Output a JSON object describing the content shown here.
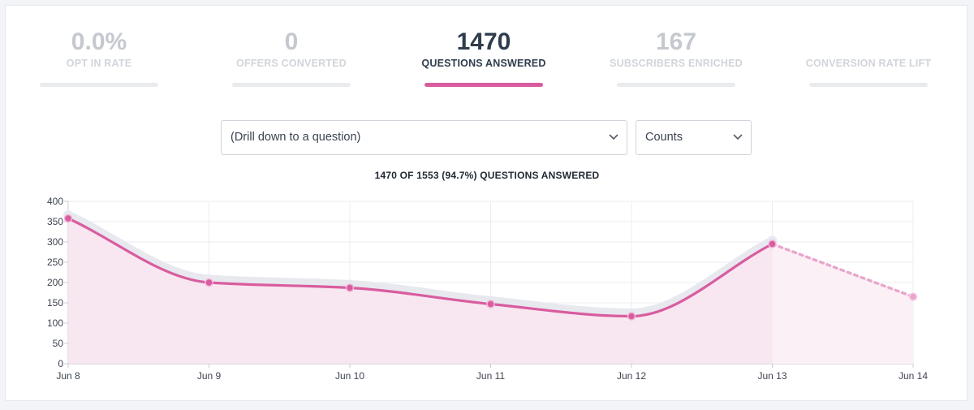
{
  "metrics": [
    {
      "value": "0.0%",
      "label": "OPT IN RATE",
      "active": false
    },
    {
      "value": "0",
      "label": "OFFERS CONVERTED",
      "active": false
    },
    {
      "value": "1470",
      "label": "QUESTIONS ANSWERED",
      "active": true
    },
    {
      "value": "167",
      "label": "SUBSCRIBERS ENRICHED",
      "active": false
    },
    {
      "value": "",
      "label": "CONVERSION RATE LIFT",
      "active": false
    }
  ],
  "filters": {
    "question_select": "(Drill down to a question)",
    "mode_select": "Counts"
  },
  "colors": {
    "accent": "#d95c9f",
    "fill": "#f7e4ef",
    "shadow": "#e7e9ef"
  },
  "chart_data": {
    "type": "area",
    "title": "1470 OF 1553 (94.7%) QUESTIONS ANSWERED",
    "categories": [
      "Jun 8",
      "Jun 9",
      "Jun 10",
      "Jun 11",
      "Jun 12",
      "Jun 13",
      "Jun 14"
    ],
    "values": [
      358,
      200,
      187,
      147,
      117,
      295,
      165
    ],
    "projected_from_index": 5,
    "ylim": [
      0,
      400
    ],
    "yticks": [
      0,
      50,
      100,
      150,
      200,
      250,
      300,
      350,
      400
    ],
    "grid": true,
    "legend": "none"
  }
}
